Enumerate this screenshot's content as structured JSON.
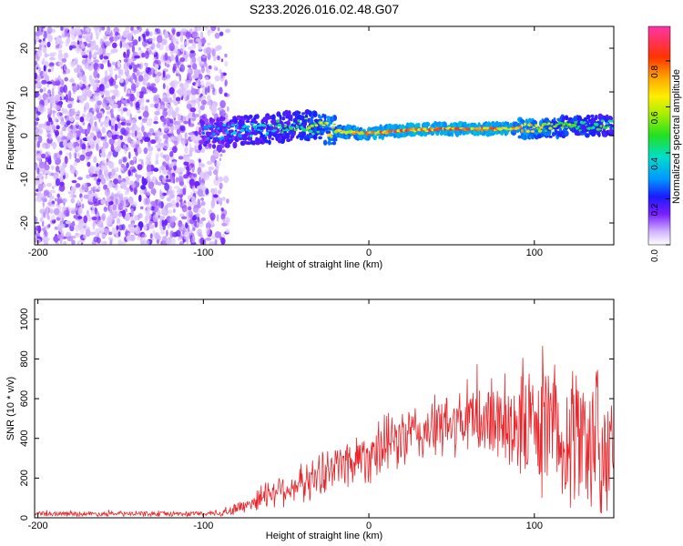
{
  "title": "S233.2026.016.02.48.G07",
  "colors": {
    "snr_line": "#e8262b",
    "axis": "#000000",
    "background": "#ffffff"
  },
  "colorbar": {
    "label": "Normalized spectral amplitude",
    "ticks": [
      {
        "value": 0.0,
        "label": "0.0"
      },
      {
        "value": 0.2,
        "label": "0.2"
      },
      {
        "value": 0.4,
        "label": "0.4"
      },
      {
        "value": 0.6,
        "label": "0.6"
      },
      {
        "value": 0.8,
        "label": "0.8"
      }
    ],
    "range": [
      0,
      0.95
    ]
  },
  "chart_data": [
    {
      "type": "heatmap",
      "title": "S233.2026.016.02.48.G07",
      "xlabel": "Height of straight line (km)",
      "ylabel": "Frequency (Hz)",
      "xlim": [
        -202,
        148
      ],
      "ylim": [
        -25,
        25
      ],
      "xticks": [
        {
          "value": -200,
          "label": "-200"
        },
        {
          "value": -100,
          "label": "-100"
        },
        {
          "value": 0,
          "label": "0"
        },
        {
          "value": 100,
          "label": "100"
        }
      ],
      "yticks": [
        {
          "value": 20,
          "label": "20"
        },
        {
          "value": 10,
          "label": "10"
        },
        {
          "value": 0,
          "label": "0"
        },
        {
          "value": -10,
          "label": "-10"
        },
        {
          "value": -20,
          "label": "-20"
        }
      ],
      "ridge": {
        "x": [
          -100,
          -80,
          -60,
          -40,
          -20,
          0,
          20,
          40,
          60,
          80,
          100,
          120,
          148
        ],
        "freq": [
          0.5,
          1.0,
          1.5,
          2.5,
          1.0,
          0.5,
          1.2,
          1.5,
          1.5,
          1.5,
          1.8,
          2.0,
          2.5
        ],
        "amplitude": [
          0.3,
          0.4,
          0.45,
          0.55,
          0.75,
          0.85,
          0.9,
          0.9,
          0.9,
          0.85,
          0.75,
          0.6,
          0.5
        ]
      },
      "noise_region": [
        -202,
        -85
      ]
    },
    {
      "type": "line",
      "xlabel": "Height of straight line (km)",
      "ylabel": "SNR (10 * v/v)",
      "xlim": [
        -202,
        148
      ],
      "ylim": [
        0,
        1100
      ],
      "xticks": [
        {
          "value": -200,
          "label": "-200"
        },
        {
          "value": -100,
          "label": "-100"
        },
        {
          "value": 0,
          "label": "0"
        },
        {
          "value": 100,
          "label": "100"
        }
      ],
      "yticks": [
        {
          "value": 0,
          "label": "0"
        },
        {
          "value": 200,
          "label": "200"
        },
        {
          "value": 400,
          "label": "400"
        },
        {
          "value": 600,
          "label": "600"
        },
        {
          "value": 800,
          "label": "800"
        },
        {
          "value": 1000,
          "label": "1000"
        }
      ],
      "envelope": {
        "x": [
          -202,
          -150,
          -100,
          -85,
          -70,
          -60,
          -40,
          -20,
          0,
          20,
          40,
          60,
          80,
          100,
          120,
          140,
          148
        ],
        "mean": [
          20,
          20,
          20,
          30,
          80,
          130,
          170,
          260,
          320,
          400,
          450,
          480,
          500,
          460,
          420,
          380,
          360
        ],
        "spread": [
          15,
          15,
          15,
          25,
          60,
          90,
          110,
          140,
          170,
          180,
          180,
          200,
          280,
          380,
          420,
          450,
          450
        ]
      }
    }
  ]
}
